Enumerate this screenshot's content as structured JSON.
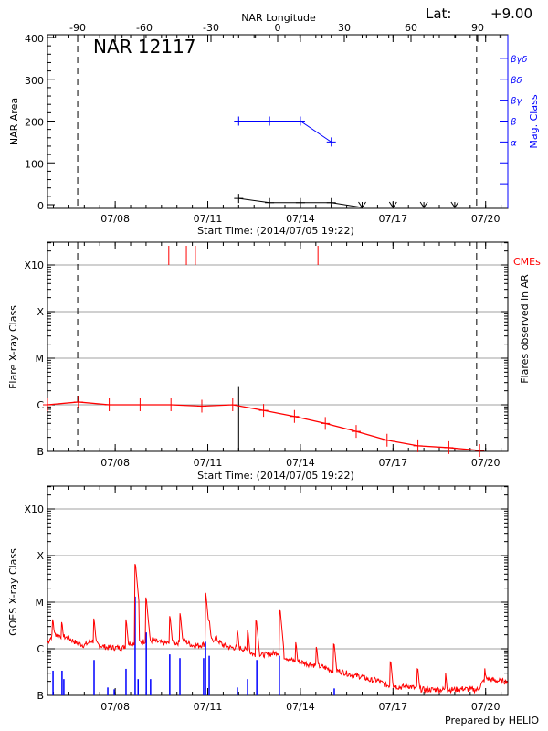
{
  "chart_data": [
    {
      "type": "line",
      "title": "NAR 12117",
      "top_axis_label": "NAR Longitude",
      "top_ticks": [
        "-90",
        "-60",
        "-30",
        "0",
        "30",
        "60",
        "90"
      ],
      "latitude_label": "Lat:",
      "latitude_value": "+9.00",
      "ylabel": "NAR Area",
      "ylim": [
        0,
        400
      ],
      "yticks": [
        "0",
        "100",
        "200",
        "300",
        "400"
      ],
      "y2label": "Mag. Class",
      "y2_ticks": [
        {
          "label": "α",
          "area_equiv": 150
        },
        {
          "label": "β",
          "area_equiv": 200
        },
        {
          "label": "βγ",
          "area_equiv": 250
        },
        {
          "label": "βδ",
          "area_equiv": 300
        },
        {
          "label": "βγδ",
          "area_equiv": 350
        }
      ],
      "xlabel": "Start Time: (2014/07/05 19:22)",
      "xlim": [
        "2014-07-05T19:22",
        "2014-07-20T17:15"
      ],
      "xticks": [
        {
          "label": "07/08",
          "t": "2014-07-08T00:00"
        },
        {
          "label": "07/11",
          "t": "2014-07-11T00:00"
        },
        {
          "label": "07/14",
          "t": "2014-07-14T00:00"
        },
        {
          "label": "07/17",
          "t": "2014-07-17T00:00"
        },
        {
          "label": "07/20",
          "t": "2014-07-20T00:00"
        }
      ],
      "limb_lines": [
        "2014-07-06T18:50",
        "2014-07-19T17:00"
      ],
      "series": [
        {
          "name": "area",
          "color": "#000000",
          "x": [
            "2014-07-12T00:00",
            "2014-07-13T00:00",
            "2014-07-14T00:00",
            "2014-07-15T00:00"
          ],
          "values": [
            15,
            5,
            5,
            5
          ]
        },
        {
          "name": "mag_class",
          "color": "#0000ff",
          "x": [
            "2014-07-12T00:00",
            "2014-07-13T00:00",
            "2014-07-14T00:00",
            "2014-07-15T00:00"
          ],
          "values": [
            "β",
            "β",
            "β",
            "α"
          ]
        }
      ],
      "not_observed": [
        "2014-07-16T00:00",
        "2014-07-17T00:00",
        "2014-07-18T00:00",
        "2014-07-19T00:00"
      ]
    },
    {
      "type": "line",
      "ylabel": "Flare X-ray Class",
      "y2label": "Flares observed in AR",
      "class_labels": [
        "B",
        "C",
        "M",
        "X",
        "X10"
      ],
      "xlabel": "Start Time: (2014/07/05 19:22)",
      "cme_label": "CMEs",
      "cme_color": "#ff0000",
      "cmes": [
        "2014-07-09T17:40",
        "2014-07-10T07:20",
        "2014-07-10T14:20",
        "2014-07-14T13:40"
      ],
      "flare_marker": {
        "t": "2014-07-12T00:00",
        "class": 1.4
      },
      "series": [
        {
          "color": "#ff0000",
          "x": [
            "2014-07-05T19:22",
            "2014-07-06T19:22",
            "2014-07-07T19:22",
            "2014-07-08T19:22",
            "2014-07-09T19:22",
            "2014-07-10T19:22",
            "2014-07-11T19:22",
            "2014-07-12T19:22",
            "2014-07-13T19:22",
            "2014-07-14T19:22",
            "2014-07-15T19:22",
            "2014-07-16T19:22",
            "2014-07-17T19:22",
            "2014-07-18T19:22",
            "2014-07-19T19:22"
          ],
          "values": [
            1.0,
            1.06,
            1.0,
            1.0,
            1.0,
            0.97,
            1.0,
            0.88,
            0.75,
            0.6,
            0.43,
            0.24,
            0.12,
            0.08,
            0.02
          ]
        }
      ]
    },
    {
      "type": "line",
      "ylabel": "GOES X-ray Class",
      "class_labels": [
        "B",
        "C",
        "M",
        "X",
        "X10"
      ],
      "footer": "Prepared by HELIO",
      "flux": {
        "color": "#ff0000",
        "t0": "2014-07-05T18:00",
        "step_hours": 6,
        "values": [
          1.05,
          1.3,
          1.25,
          1.2,
          1.1,
          1.05,
          1.15,
          1.05,
          1.0,
          1.0,
          1.0,
          1.1,
          1.1,
          1.15,
          1.15,
          1.1,
          1.1,
          1.1,
          1.15,
          1.05,
          1.05,
          1.1,
          1.2,
          1.05,
          1.0,
          1.0,
          0.95,
          0.85,
          0.85,
          0.85,
          0.9,
          0.8,
          0.72,
          0.7,
          0.65,
          0.62,
          0.58,
          0.52,
          0.5,
          0.45,
          0.4,
          0.38,
          0.3,
          0.3,
          0.2,
          0.18,
          0.15,
          0.18,
          0.12,
          0.1,
          0.1,
          0.1,
          0.1,
          0.1,
          0.12,
          0.1,
          0.1,
          0.35,
          0.3,
          0.28
        ],
        "peaks": [
          [
            "2014-07-05T23:40",
            1.63
          ],
          [
            "2014-07-06T06:40",
            1.57
          ],
          [
            "2014-07-07T07:35",
            1.65
          ],
          [
            "2014-07-08T08:35",
            1.63
          ],
          [
            "2014-07-08T15:45",
            2.82
          ],
          [
            "2014-07-09T00:10",
            2.1
          ],
          [
            "2014-07-09T18:40",
            1.7
          ],
          [
            "2014-07-10T02:35",
            1.76
          ],
          [
            "2014-07-10T22:30",
            2.2
          ],
          [
            "2014-07-11T01:20",
            1.6
          ],
          [
            "2014-07-11T23:10",
            1.4
          ],
          [
            "2014-07-12T07:10",
            1.4
          ],
          [
            "2014-07-12T13:50",
            1.6
          ],
          [
            "2014-07-13T08:20",
            1.82
          ],
          [
            "2014-07-13T20:35",
            1.14
          ],
          [
            "2014-07-14T12:40",
            1.04
          ],
          [
            "2014-07-15T02:20",
            1.1
          ],
          [
            "2014-07-16T22:20",
            0.72
          ],
          [
            "2014-07-17T19:20",
            0.57
          ],
          [
            "2014-07-18T16:55",
            0.48
          ],
          [
            "2014-07-19T23:25",
            0.58
          ]
        ]
      },
      "flares": {
        "color": "#0000ff",
        "events": [
          [
            "2014-07-05T23:40",
            0.53
          ],
          [
            "2014-07-06T06:40",
            0.53
          ],
          [
            "2014-07-06T08:05",
            0.35
          ],
          [
            "2014-07-07T07:35",
            0.76
          ],
          [
            "2014-07-07T18:15",
            0.17
          ],
          [
            "2014-07-07T23:15",
            0.13
          ],
          [
            "2014-07-08T08:25",
            0.57
          ],
          [
            "2014-07-08T15:30",
            2.12
          ],
          [
            "2014-07-08T17:50",
            0.35
          ],
          [
            "2014-07-09T00:10",
            1.35
          ],
          [
            "2014-07-09T03:30",
            0.35
          ],
          [
            "2014-07-09T18:25",
            0.88
          ],
          [
            "2014-07-10T02:20",
            0.8
          ],
          [
            "2014-07-10T20:45",
            0.8
          ],
          [
            "2014-07-10T22:15",
            1.15
          ],
          [
            "2014-07-11T01:05",
            0.85
          ],
          [
            "2014-07-11T23:00",
            0.17
          ],
          [
            "2014-07-12T06:55",
            0.35
          ],
          [
            "2014-07-12T14:05",
            0.76
          ],
          [
            "2014-07-13T07:40",
            0.85
          ],
          [
            "2014-07-15T02:20",
            0.15
          ]
        ]
      }
    }
  ]
}
